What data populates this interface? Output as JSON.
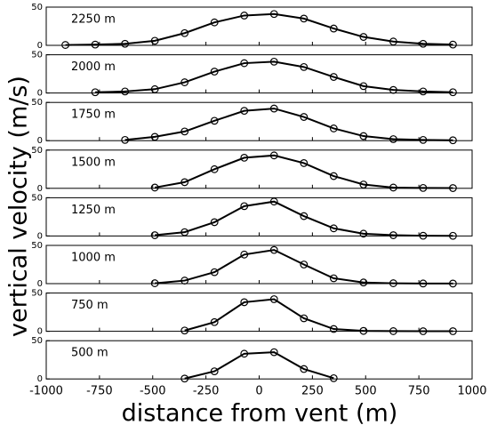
{
  "ylabel": "vertical velocity (m/s)",
  "xlabel": "distance from vent (m)",
  "chart_data": [
    {
      "type": "line",
      "label": "2250 m",
      "color": "#000000",
      "xlim": [
        -1000,
        1000
      ],
      "ylim": [
        0,
        50
      ],
      "yticks": [
        0,
        50
      ],
      "xticks": [
        -1000,
        -750,
        -500,
        -250,
        0,
        250,
        500,
        750,
        1000
      ],
      "x": [
        -910,
        -770,
        -630,
        -490,
        -350,
        -210,
        -70,
        70,
        210,
        350,
        490,
        630,
        770,
        910
      ],
      "values": [
        0.5,
        1,
        2,
        6,
        16,
        30,
        39,
        41,
        35,
        22,
        11,
        5,
        2,
        1
      ]
    },
    {
      "type": "line",
      "label": "2000 m",
      "color": "#000000",
      "xlim": [
        -1000,
        1000
      ],
      "ylim": [
        0,
        50
      ],
      "yticks": [
        0,
        50
      ],
      "xticks": [
        -1000,
        -750,
        -500,
        -250,
        0,
        250,
        500,
        750,
        1000
      ],
      "x": [
        -910,
        -770,
        -630,
        -490,
        -350,
        -210,
        -70,
        70,
        210,
        350,
        490,
        630,
        770,
        910
      ],
      "values": [
        null,
        1,
        2,
        5,
        14,
        28,
        39,
        41,
        34,
        21,
        9,
        4,
        2,
        1
      ]
    },
    {
      "type": "line",
      "label": "1750 m",
      "color": "#000000",
      "xlim": [
        -1000,
        1000
      ],
      "ylim": [
        0,
        50
      ],
      "yticks": [
        0,
        50
      ],
      "xticks": [
        -1000,
        -750,
        -500,
        -250,
        0,
        250,
        500,
        750,
        1000
      ],
      "x": [
        -910,
        -770,
        -630,
        -490,
        -350,
        -210,
        -70,
        70,
        210,
        350,
        490,
        630,
        770,
        910
      ],
      "values": [
        null,
        null,
        1,
        5,
        12,
        26,
        39,
        42,
        31,
        16,
        6,
        2,
        1,
        0.5
      ]
    },
    {
      "type": "line",
      "label": "1500 m",
      "color": "#000000",
      "xlim": [
        -1000,
        1000
      ],
      "ylim": [
        0,
        50
      ],
      "yticks": [
        0,
        50
      ],
      "xticks": [
        -1000,
        -750,
        -500,
        -250,
        0,
        250,
        500,
        750,
        1000
      ],
      "x": [
        -910,
        -770,
        -630,
        -490,
        -350,
        -210,
        -70,
        70,
        210,
        350,
        490,
        630,
        770,
        910
      ],
      "values": [
        null,
        null,
        null,
        1,
        8,
        25,
        40,
        43,
        33,
        16,
        5,
        1,
        0.5,
        0.3
      ]
    },
    {
      "type": "line",
      "label": "1250 m",
      "color": "#000000",
      "xlim": [
        -1000,
        1000
      ],
      "ylim": [
        0,
        50
      ],
      "yticks": [
        0,
        50
      ],
      "xticks": [
        -1000,
        -750,
        -500,
        -250,
        0,
        250,
        500,
        750,
        1000
      ],
      "x": [
        -910,
        -770,
        -630,
        -490,
        -350,
        -210,
        -70,
        70,
        210,
        350,
        490,
        630,
        770,
        910
      ],
      "values": [
        null,
        null,
        null,
        1,
        5,
        18,
        39,
        45,
        26,
        10,
        3,
        1,
        0.3,
        0.2
      ]
    },
    {
      "type": "line",
      "label": "1000 m",
      "color": "#000000",
      "xlim": [
        -1000,
        1000
      ],
      "ylim": [
        0,
        50
      ],
      "yticks": [
        0,
        50
      ],
      "xticks": [
        -1000,
        -750,
        -500,
        -250,
        0,
        250,
        500,
        750,
        1000
      ],
      "x": [
        -910,
        -770,
        -630,
        -490,
        -350,
        -210,
        -70,
        70,
        210,
        350,
        490,
        630,
        770,
        910
      ],
      "values": [
        null,
        null,
        null,
        0.5,
        4,
        15,
        38,
        44,
        25,
        7,
        1.5,
        0.5,
        0.2,
        0.1
      ]
    },
    {
      "type": "line",
      "label": "750 m",
      "color": "#000000",
      "xlim": [
        -1000,
        1000
      ],
      "ylim": [
        0,
        50
      ],
      "yticks": [
        0,
        50
      ],
      "xticks": [
        -1000,
        -750,
        -500,
        -250,
        0,
        250,
        500,
        750,
        1000
      ],
      "x": [
        -910,
        -770,
        -630,
        -490,
        -350,
        -210,
        -70,
        70,
        210,
        350,
        490,
        630,
        770,
        910
      ],
      "values": [
        null,
        null,
        null,
        null,
        1,
        12,
        38,
        42,
        17,
        3,
        0.5,
        0.2,
        0.1,
        0.1
      ]
    },
    {
      "type": "line",
      "label": "500 m",
      "color": "#000000",
      "xlim": [
        -1000,
        1000
      ],
      "ylim": [
        0,
        50
      ],
      "yticks": [
        0,
        50
      ],
      "xticks": [
        -1000,
        -750,
        -500,
        -250,
        0,
        250,
        500,
        750,
        1000
      ],
      "x": [
        -910,
        -770,
        -630,
        -490,
        -350,
        -210,
        -70,
        70,
        210,
        350,
        490,
        630,
        770,
        910
      ],
      "values": [
        null,
        null,
        null,
        null,
        0.5,
        10,
        33,
        35,
        13,
        1,
        null,
        null,
        null,
        null
      ]
    }
  ]
}
